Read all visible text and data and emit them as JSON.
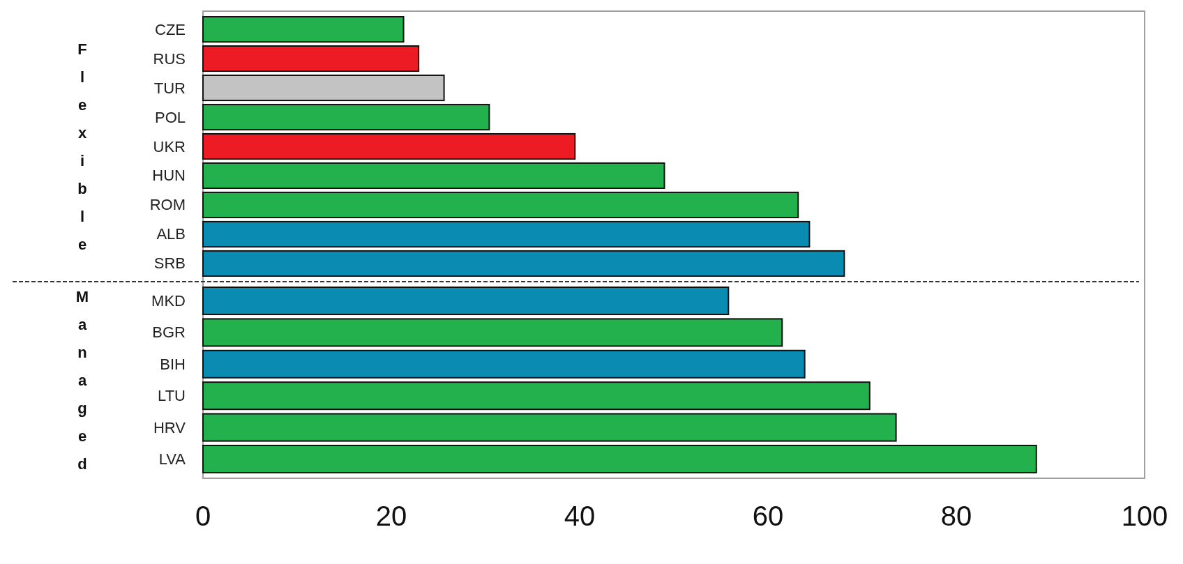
{
  "chart_data": [
    {
      "type": "bar",
      "orientation": "horizontal",
      "ylabel": "Flexible",
      "categories": [
        "CZE",
        "RUS",
        "TUR",
        "POL",
        "UKR",
        "HUN",
        "ROM",
        "ALB",
        "SRB"
      ],
      "values": [
        21.3,
        22.9,
        25.6,
        30.4,
        39.5,
        49.0,
        63.2,
        64.4,
        68.1
      ],
      "colors": [
        "#22b14c",
        "#ed1c24",
        "#c3c3c3",
        "#22b14c",
        "#ed1c24",
        "#22b14c",
        "#22b14c",
        "#0a8bb2",
        "#0a8bb2"
      ],
      "xlim": [
        0,
        100
      ],
      "tick_labels": "y"
    },
    {
      "type": "bar",
      "orientation": "horizontal",
      "ylabel": "Managed",
      "categories": [
        "MKD",
        "BGR",
        "BIH",
        "LTU",
        "HRV",
        "LVA"
      ],
      "values": [
        55.8,
        61.5,
        63.9,
        70.8,
        73.6,
        88.5
      ],
      "colors": [
        "#0a8bb2",
        "#22b14c",
        "#0a8bb2",
        "#22b14c",
        "#22b14c",
        "#22b14c"
      ],
      "xlim": [
        0,
        100
      ],
      "xticks": [
        0,
        20,
        40,
        60,
        80,
        100
      ]
    }
  ]
}
